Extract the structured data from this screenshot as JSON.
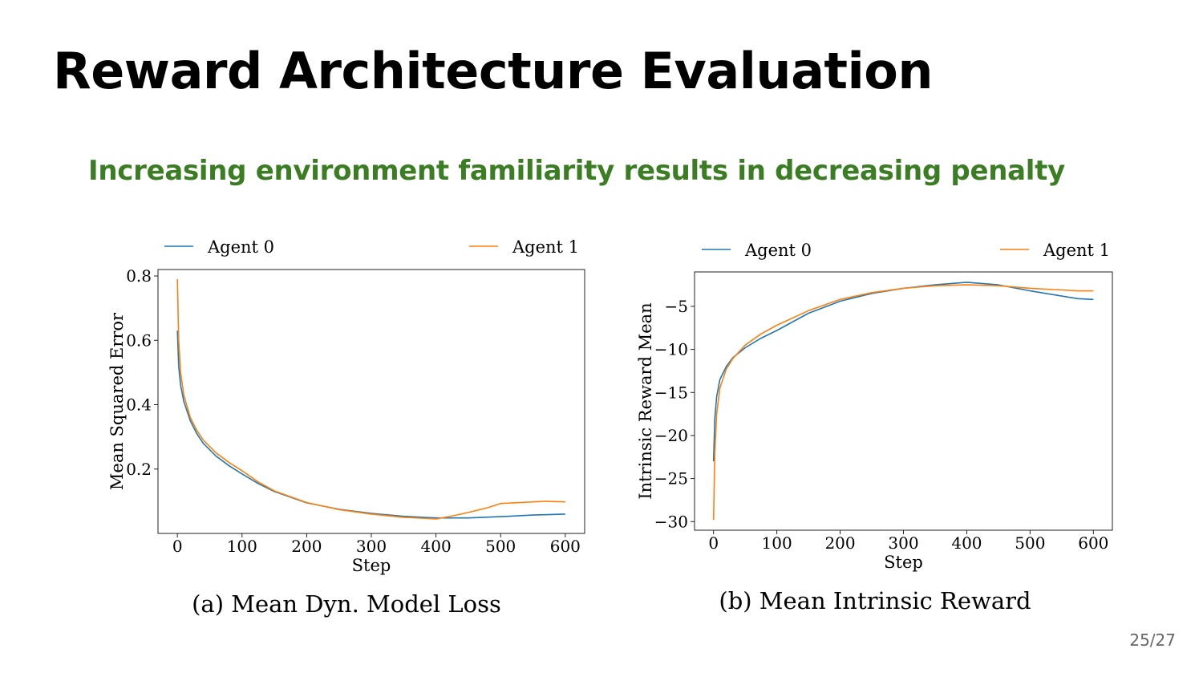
{
  "slide": {
    "title": "Reward Architecture Evaluation",
    "subtitle": "Increasing environment familiarity results in decreasing penalty",
    "page": "25/27",
    "accent_color": "#3a7d22"
  },
  "chart_data": [
    {
      "type": "line",
      "caption": "(a) Mean Dyn. Model Loss",
      "xlabel": "Step",
      "ylabel": "Mean Squared Error",
      "xlim": [
        -30,
        630
      ],
      "ylim": [
        0.0,
        0.82
      ],
      "xticks": [
        0,
        100,
        200,
        300,
        400,
        500,
        600
      ],
      "xtick_labels": [
        "0",
        "100",
        "200",
        "300",
        "400",
        "500",
        "600"
      ],
      "yticks": [
        0.2,
        0.4,
        0.6,
        0.8
      ],
      "ytick_labels": [
        "0.2",
        "0.4",
        "0.6",
        "0.8"
      ],
      "legend": "top, outside",
      "grid": false,
      "series": [
        {
          "name": "Agent 0",
          "color": "#1f77b4",
          "x": [
            0,
            2,
            5,
            10,
            20,
            30,
            40,
            60,
            80,
            100,
            125,
            150,
            200,
            250,
            300,
            350,
            400,
            450,
            500,
            550,
            600
          ],
          "y": [
            0.63,
            0.52,
            0.46,
            0.41,
            0.35,
            0.31,
            0.28,
            0.24,
            0.21,
            0.185,
            0.155,
            0.13,
            0.095,
            0.075,
            0.062,
            0.053,
            0.048,
            0.048,
            0.052,
            0.057,
            0.06
          ]
        },
        {
          "name": "Agent 1",
          "color": "#ff7f0e",
          "x": [
            0,
            2,
            5,
            10,
            20,
            30,
            40,
            60,
            80,
            100,
            125,
            150,
            200,
            250,
            300,
            350,
            400,
            420,
            450,
            480,
            500,
            550,
            570,
            600
          ],
          "y": [
            0.79,
            0.6,
            0.5,
            0.43,
            0.36,
            0.32,
            0.29,
            0.25,
            0.22,
            0.195,
            0.16,
            0.132,
            0.096,
            0.074,
            0.06,
            0.05,
            0.045,
            0.052,
            0.065,
            0.08,
            0.093,
            0.098,
            0.1,
            0.098
          ]
        }
      ]
    },
    {
      "type": "line",
      "caption": "(b) Mean Intrinsic Reward",
      "xlabel": "Step",
      "ylabel": "Intrinsic Reward Mean",
      "xlim": [
        -30,
        630
      ],
      "ylim": [
        -31,
        -1
      ],
      "xticks": [
        0,
        100,
        200,
        300,
        400,
        500,
        600
      ],
      "xtick_labels": [
        "0",
        "100",
        "200",
        "300",
        "400",
        "500",
        "600"
      ],
      "yticks": [
        -30,
        -25,
        -20,
        -15,
        -10,
        -5
      ],
      "ytick_labels": [
        "−30",
        "−25",
        "−20",
        "−15",
        "−10",
        "−5"
      ],
      "legend": "top, outside",
      "grid": false,
      "series": [
        {
          "name": "Agent 0",
          "color": "#1f77b4",
          "x": [
            0,
            2,
            5,
            10,
            20,
            30,
            50,
            75,
            100,
            150,
            200,
            250,
            300,
            350,
            400,
            450,
            500,
            550,
            575,
            600
          ],
          "y": [
            -23,
            -18,
            -15.5,
            -13.5,
            -12,
            -11,
            -9.8,
            -8.7,
            -7.8,
            -5.8,
            -4.4,
            -3.5,
            -2.9,
            -2.5,
            -2.2,
            -2.5,
            -3.2,
            -3.8,
            -4.1,
            -4.2
          ]
        },
        {
          "name": "Agent 1",
          "color": "#ff7f0e",
          "x": [
            0,
            2,
            5,
            10,
            20,
            30,
            50,
            75,
            100,
            150,
            200,
            250,
            300,
            350,
            400,
            450,
            500,
            550,
            575,
            600
          ],
          "y": [
            -29.8,
            -22,
            -17.5,
            -14.5,
            -12.3,
            -11.1,
            -9.5,
            -8.2,
            -7.2,
            -5.5,
            -4.2,
            -3.4,
            -2.9,
            -2.6,
            -2.5,
            -2.6,
            -2.9,
            -3.1,
            -3.2,
            -3.2
          ]
        }
      ]
    }
  ]
}
